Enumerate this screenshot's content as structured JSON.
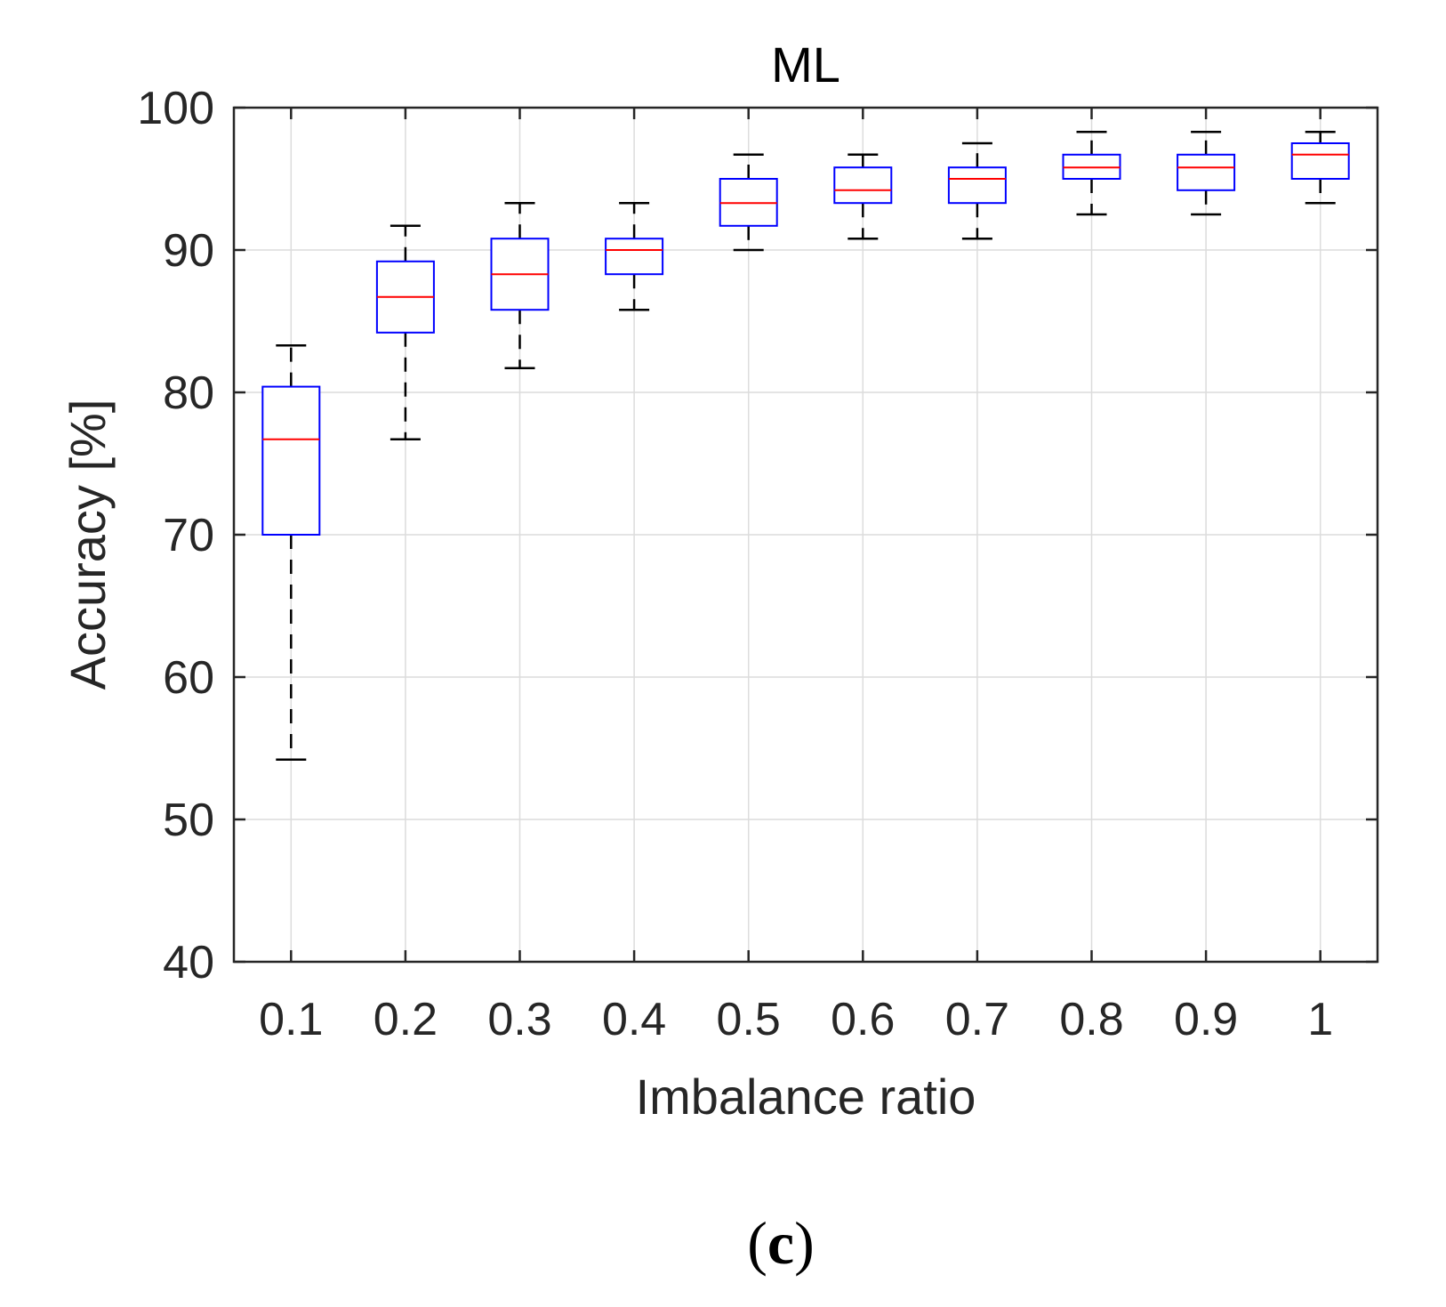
{
  "chart_data": {
    "type": "box",
    "title": "ML",
    "xlabel": "Imbalance ratio",
    "ylabel": "Accuracy [%]",
    "ylim": [
      40,
      100
    ],
    "yticks": [
      40,
      50,
      60,
      70,
      80,
      90,
      100
    ],
    "grid": true,
    "categories": [
      "0.1",
      "0.2",
      "0.3",
      "0.4",
      "0.5",
      "0.6",
      "0.7",
      "0.8",
      "0.9",
      "1"
    ],
    "boxes": [
      {
        "min": 54.2,
        "q1": 70.0,
        "median": 76.7,
        "q3": 80.4,
        "max": 83.3
      },
      {
        "min": 76.7,
        "q1": 84.2,
        "median": 86.7,
        "q3": 89.2,
        "max": 91.7
      },
      {
        "min": 81.7,
        "q1": 85.8,
        "median": 88.3,
        "q3": 90.8,
        "max": 93.3
      },
      {
        "min": 85.8,
        "q1": 88.3,
        "median": 90.0,
        "q3": 90.8,
        "max": 93.3
      },
      {
        "min": 90.0,
        "q1": 91.7,
        "median": 93.3,
        "q3": 95.0,
        "max": 96.7
      },
      {
        "min": 90.8,
        "q1": 93.3,
        "median": 94.2,
        "q3": 95.8,
        "max": 96.7
      },
      {
        "min": 90.8,
        "q1": 93.3,
        "median": 95.0,
        "q3": 95.8,
        "max": 97.5
      },
      {
        "min": 92.5,
        "q1": 95.0,
        "median": 95.8,
        "q3": 96.7,
        "max": 98.3
      },
      {
        "min": 92.5,
        "q1": 94.2,
        "median": 95.8,
        "q3": 96.7,
        "max": 98.3
      },
      {
        "min": 93.3,
        "q1": 95.0,
        "median": 96.7,
        "q3": 97.5,
        "max": 98.3
      }
    ],
    "colors": {
      "box": "#0000ff",
      "median": "#ff0000",
      "whisker": "#000000",
      "axes": "#262626",
      "grid": "#dcdcdc"
    }
  },
  "panel_label": {
    "open": "(",
    "letter": "c",
    "close": ")"
  }
}
